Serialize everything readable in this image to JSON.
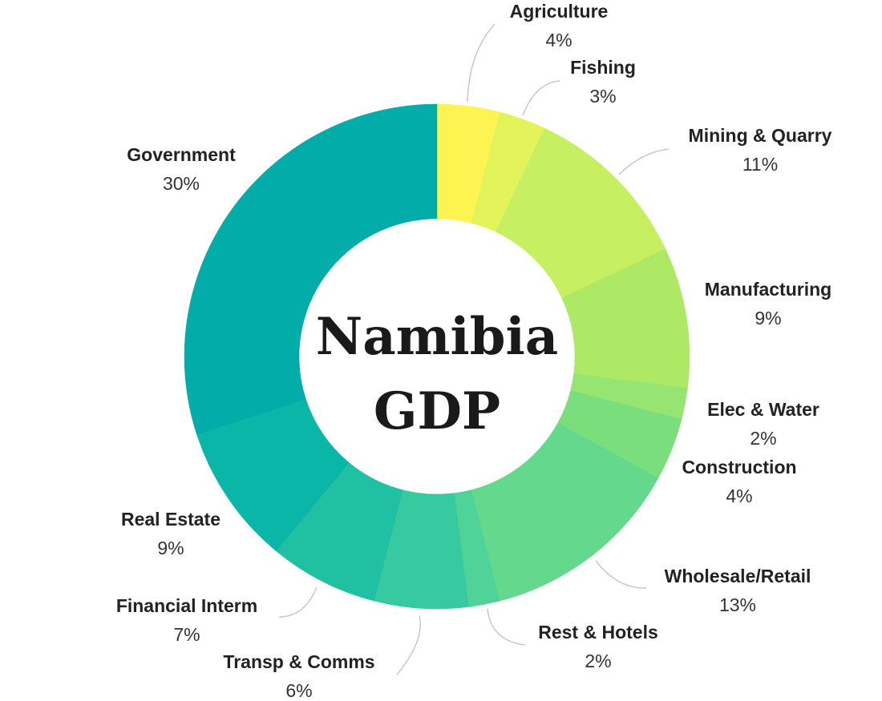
{
  "chart_data": {
    "type": "pie",
    "donut": true,
    "title_lines": [
      "Namibia",
      "GDP"
    ],
    "slices": [
      {
        "name": "Agriculture",
        "value": 4,
        "label": "4%",
        "color": "#fdf451"
      },
      {
        "name": "Fishing",
        "value": 3,
        "label": "3%",
        "color": "#e3f45a"
      },
      {
        "name": "Mining & Quarry",
        "value": 11,
        "label": "11%",
        "color": "#c6ef62"
      },
      {
        "name": "Manufacturing",
        "value": 9,
        "label": "9%",
        "color": "#ade964"
      },
      {
        "name": "Elec & Water",
        "value": 2,
        "label": "2%",
        "color": "#96e472"
      },
      {
        "name": "Construction",
        "value": 4,
        "label": "4%",
        "color": "#7ade7c"
      },
      {
        "name": "Wholesale/Retail",
        "value": 13,
        "label": "13%",
        "color": "#64d98d"
      },
      {
        "name": "Rest & Hotels",
        "value": 2,
        "label": "2%",
        "color": "#4fd399"
      },
      {
        "name": "Transp & Comms",
        "value": 6,
        "label": "6%",
        "color": "#37c9a0"
      },
      {
        "name": "Financial Interm",
        "value": 7,
        "label": "7%",
        "color": "#20c0a2"
      },
      {
        "name": "Real Estate",
        "value": 9,
        "label": "9%",
        "color": "#0ab6a8"
      },
      {
        "name": "Government",
        "value": 30,
        "label": "30%",
        "color": "#02aca9"
      }
    ]
  }
}
